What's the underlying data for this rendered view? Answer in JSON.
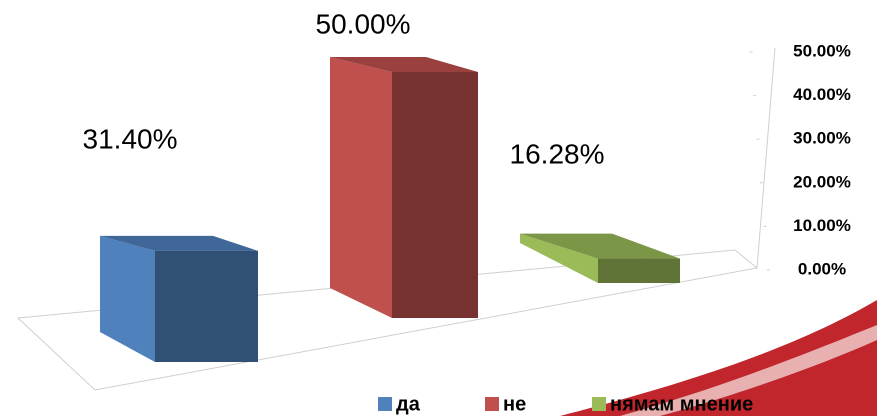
{
  "chart_data": {
    "type": "bar3d",
    "series": [
      {
        "name": "да",
        "color": "#4f81bd",
        "values": [
          31.4
        ],
        "value_labels": [
          "31.40%"
        ]
      },
      {
        "name": "не",
        "color": "#c0504d",
        "values": [
          50.0
        ],
        "value_labels": [
          "50.00%"
        ]
      },
      {
        "name": "нямам мнение",
        "color": "#9bbb59",
        "values": [
          16.28
        ],
        "value_labels": [
          "16.28%"
        ]
      }
    ],
    "ylim": [
      0,
      50
    ],
    "yticks": [
      {
        "value": 0,
        "label": "0.00%"
      },
      {
        "value": 10,
        "label": "10.00%"
      },
      {
        "value": 20,
        "label": "20.00%"
      },
      {
        "value": 30,
        "label": "30.00%"
      },
      {
        "value": 40,
        "label": "40.00%"
      },
      {
        "value": 50,
        "label": "50.00%"
      }
    ],
    "legend": "bottom"
  }
}
